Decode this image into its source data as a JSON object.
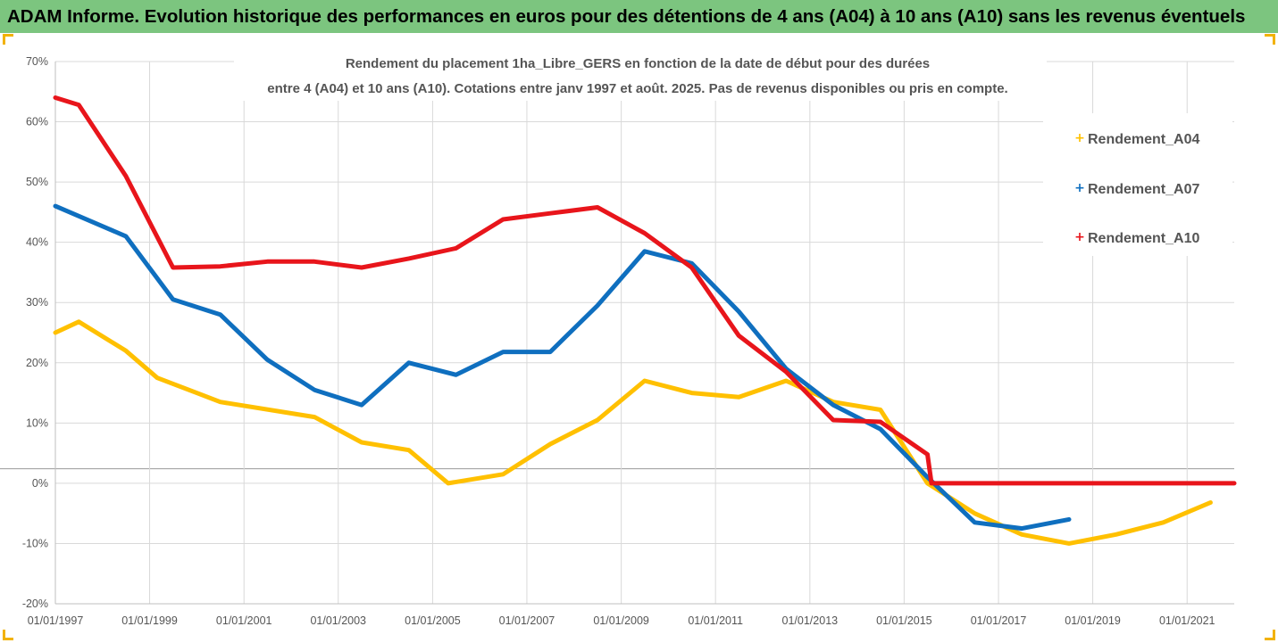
{
  "banner": {
    "title": "ADAM Informe. Evolution historique des performances en euros pour des détentions de 4 ans (A04) à 10 ans (A10) sans les revenus éventuels"
  },
  "colors": {
    "banner_bg": "#7cc57f",
    "corner_accent": "#f2b200"
  },
  "chart_data": {
    "type": "line",
    "title_lines": [
      "Rendement du placement 1ha_Libre_GERS en fonction de la date de début pour des durées",
      "entre 4 (A04) et 10 ans (A10). Cotations entre janv 1997 et août. 2025. Pas de revenus disponibles ou pris en compte."
    ],
    "xlabel": "",
    "ylabel": "",
    "x_ticks": [
      "01/01/1997",
      "01/01/1999",
      "01/01/2001",
      "01/01/2003",
      "01/01/2005",
      "01/01/2007",
      "01/01/2009",
      "01/01/2011",
      "01/01/2013",
      "01/01/2015",
      "01/01/2017",
      "01/01/2019",
      "01/01/2021"
    ],
    "xlim": [
      "1997-01-01",
      "2022-01-01"
    ],
    "y_ticks": [
      "70%",
      "60%",
      "50%",
      "40%",
      "30%",
      "20%",
      "10%",
      "0%",
      "-10%",
      "-20%"
    ],
    "ylim": [
      -20,
      70
    ],
    "grid": true,
    "legend_position": "right",
    "series": [
      {
        "name": "Rendement_A04",
        "color": "#ffc000",
        "points": [
          [
            "1997-01-01",
            25
          ],
          [
            "1997-07-01",
            26.8
          ],
          [
            "1998-07-01",
            22
          ],
          [
            "1999-03-01",
            17.5
          ],
          [
            "2000-01-01",
            15
          ],
          [
            "2000-07-01",
            13.5
          ],
          [
            "2002-07-01",
            11
          ],
          [
            "2003-07-01",
            6.8
          ],
          [
            "2004-07-01",
            5.5
          ],
          [
            "2005-05-01",
            0
          ],
          [
            "2006-07-01",
            1.5
          ],
          [
            "2007-07-01",
            6.5
          ],
          [
            "2008-07-01",
            10.5
          ],
          [
            "2009-07-01",
            17
          ],
          [
            "2010-07-01",
            15
          ],
          [
            "2011-07-01",
            14.3
          ],
          [
            "2012-07-01",
            17
          ],
          [
            "2013-07-01",
            13.5
          ],
          [
            "2014-07-01",
            12.2
          ],
          [
            "2015-07-01",
            0
          ],
          [
            "2016-07-01",
            -5
          ],
          [
            "2017-07-01",
            -8.5
          ],
          [
            "2018-07-01",
            -10
          ],
          [
            "2019-07-01",
            -8.5
          ],
          [
            "2020-07-01",
            -6.5
          ],
          [
            "2021-07-01",
            -3.2
          ]
        ]
      },
      {
        "name": "Rendement_A07",
        "color": "#0f6fbf",
        "points": [
          [
            "1997-01-01",
            46
          ],
          [
            "1998-07-01",
            41
          ],
          [
            "1999-07-01",
            30.5
          ],
          [
            "2000-07-01",
            28
          ],
          [
            "2001-07-01",
            20.5
          ],
          [
            "2002-07-01",
            15.5
          ],
          [
            "2003-07-01",
            13
          ],
          [
            "2004-07-01",
            20
          ],
          [
            "2005-07-01",
            18
          ],
          [
            "2006-07-01",
            21.8
          ],
          [
            "2007-07-01",
            21.8
          ],
          [
            "2008-07-01",
            29.5
          ],
          [
            "2009-07-01",
            38.5
          ],
          [
            "2010-07-01",
            36.5
          ],
          [
            "2011-07-01",
            28.5
          ],
          [
            "2012-07-01",
            19
          ],
          [
            "2013-07-01",
            13
          ],
          [
            "2014-07-01",
            9
          ],
          [
            "2015-07-01",
            1
          ],
          [
            "2016-07-01",
            -6.5
          ],
          [
            "2017-07-01",
            -7.5
          ],
          [
            "2018-07-01",
            -6
          ]
        ]
      },
      {
        "name": "Rendement_A10",
        "color": "#e8151b",
        "points": [
          [
            "1997-01-01",
            64
          ],
          [
            "1997-07-01",
            62.8
          ],
          [
            "1998-07-01",
            51
          ],
          [
            "1999-07-01",
            35.8
          ],
          [
            "2000-07-01",
            36
          ],
          [
            "2001-07-01",
            36.8
          ],
          [
            "2002-07-01",
            36.8
          ],
          [
            "2003-07-01",
            35.8
          ],
          [
            "2004-07-01",
            37.3
          ],
          [
            "2005-07-01",
            39
          ],
          [
            "2006-07-01",
            43.8
          ],
          [
            "2007-07-01",
            44.8
          ],
          [
            "2008-07-01",
            45.8
          ],
          [
            "2009-07-01",
            41.5
          ],
          [
            "2010-07-01",
            35.8
          ],
          [
            "2011-07-01",
            24.5
          ],
          [
            "2012-07-01",
            18.5
          ],
          [
            "2013-07-01",
            10.5
          ],
          [
            "2014-07-01",
            10.2
          ],
          [
            "2015-07-01",
            4.8
          ],
          [
            "2015-08-01",
            0
          ],
          [
            "2017-07-01",
            0
          ],
          [
            "2019-07-01",
            0
          ],
          [
            "2021-07-01",
            0
          ],
          [
            "2022-01-01",
            0
          ]
        ]
      }
    ]
  }
}
